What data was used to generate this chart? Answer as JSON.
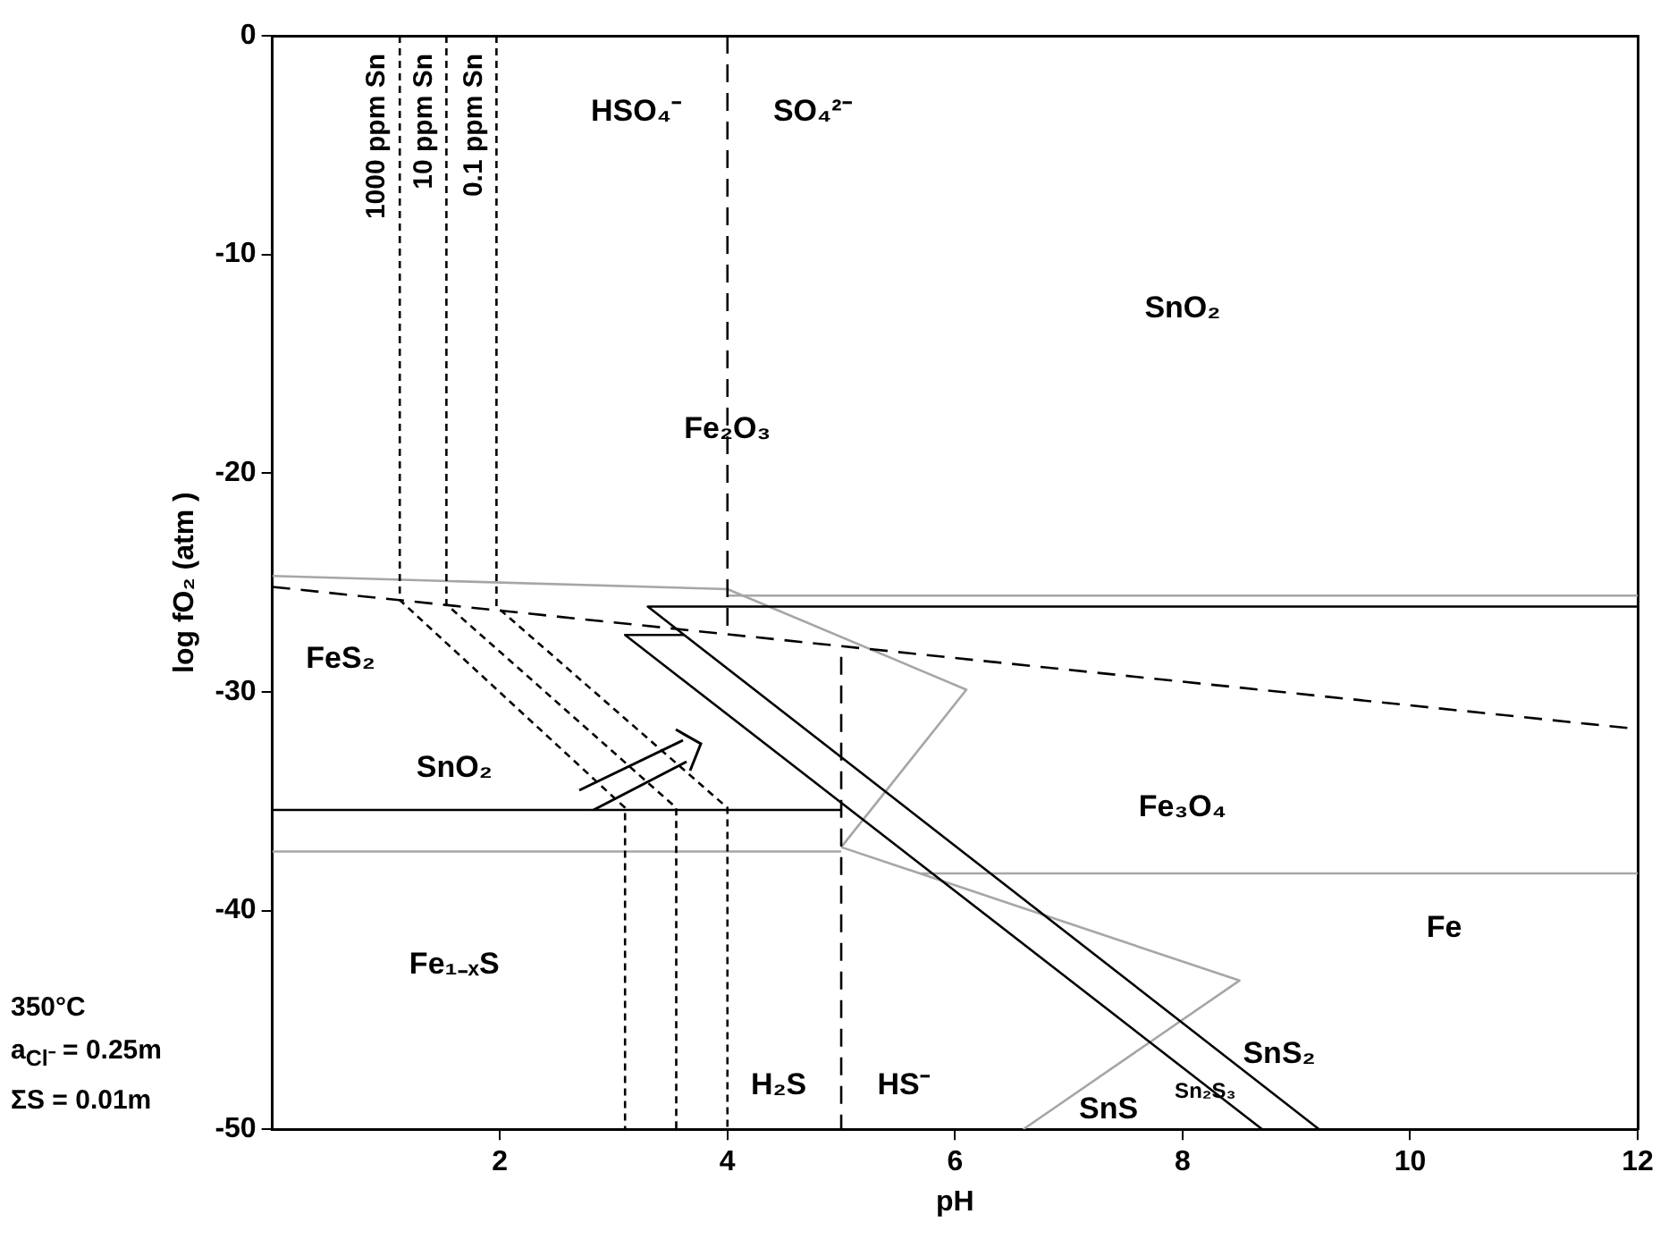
{
  "chart_data": {
    "type": "line",
    "xlabel": "pH",
    "ylabel": "log fO₂ (atm )",
    "xlim": [
      0,
      12
    ],
    "xticks": [
      2,
      4,
      6,
      8,
      10,
      12
    ],
    "ylim": [
      -50,
      0
    ],
    "yticks": [
      0,
      -10,
      -20,
      -30,
      -40,
      -50
    ],
    "grid": false,
    "legend": false,
    "marker": "none",
    "series": [
      {
        "name": "1000 ppm Sn",
        "color": "#000000",
        "line_style": "dotted",
        "x": [
          1.12,
          1.12,
          3.1,
          3.1
        ],
        "values": [
          0,
          -25.8,
          -35.3,
          -50
        ]
      },
      {
        "name": "10 ppm Sn",
        "color": "#000000",
        "line_style": "dotted",
        "x": [
          1.53,
          1.53,
          3.55,
          3.55
        ],
        "values": [
          0,
          -26.0,
          -35.3,
          -50
        ]
      },
      {
        "name": "0.1 ppm Sn",
        "color": "#000000",
        "line_style": "dotted",
        "x": [
          1.97,
          1.97,
          4.0,
          4.0
        ],
        "values": [
          0,
          -26.1,
          -35.3,
          -50
        ]
      },
      {
        "color": "#000000",
        "line_style": "dashed",
        "x": [
          4,
          4
        ],
        "values": [
          0,
          -27.3
        ]
      },
      {
        "color": "#000000",
        "line_style": "dashed",
        "x": [
          5,
          5
        ],
        "values": [
          -28.4,
          -50
        ]
      },
      {
        "color": "#000000",
        "line_style": "dashed",
        "x": [
          0,
          12
        ],
        "values": [
          -25.2,
          -31.7
        ]
      },
      {
        "color": "#000000",
        "line_style": "solid",
        "x": [
          12,
          3.3,
          9.2
        ],
        "values": [
          -26.1,
          -26.1,
          -50
        ]
      },
      {
        "color": "#000000",
        "line_style": "solid",
        "x": [
          3.62,
          3.1,
          8.7
        ],
        "values": [
          -27.4,
          -27.4,
          -50
        ]
      },
      {
        "color": "#000000",
        "line_style": "solid",
        "x": [
          0,
          5
        ],
        "values": [
          -35.4,
          -35.4
        ]
      },
      {
        "color": "#a6a6a6",
        "line_style": "solid",
        "x": [
          0,
          4,
          6.1,
          5.0
        ],
        "values": [
          -24.7,
          -25.3,
          -29.9,
          -37.1
        ]
      },
      {
        "color": "#a6a6a6",
        "line_style": "solid",
        "x": [
          0,
          5
        ],
        "values": [
          -37.3,
          -37.3
        ]
      },
      {
        "color": "#a6a6a6",
        "line_style": "solid",
        "x": [
          5.0,
          8.5,
          6.6
        ],
        "values": [
          -37.1,
          -43.2,
          -50
        ]
      },
      {
        "color": "#a6a6a6",
        "line_style": "solid",
        "x": [
          4,
          12
        ],
        "values": [
          -25.6,
          -25.6
        ]
      },
      {
        "color": "#a6a6a6",
        "line_style": "solid",
        "x": [
          5.7,
          12
        ],
        "values": [
          -38.3,
          -38.3
        ]
      }
    ],
    "annotations": [
      "HSO₄⁻",
      "SO₄²⁻",
      "SnO₂",
      "Fe₂O₃",
      "FeS₂",
      "SnO₂",
      "Fe₃O₄",
      "Fe",
      "Fe₁₋ₓS",
      "H₂S",
      "HS⁻",
      "SnS₂",
      "Sn₂S₃",
      "SnS",
      "350°C",
      "a$_{Cl⁻}$ = 0.25m",
      "ΣS = 0.01m"
    ]
  }
}
